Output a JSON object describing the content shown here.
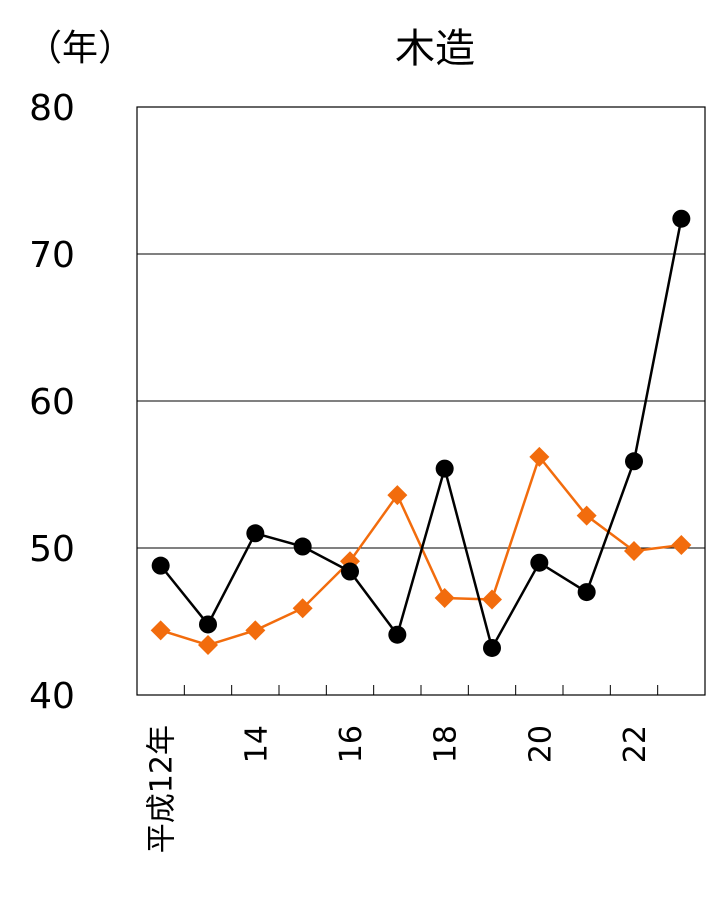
{
  "chart_data": {
    "type": "line",
    "title": "木造",
    "y_label": "（年）",
    "categories": [
      "平成12年",
      null,
      "14",
      null,
      "16",
      null,
      "18",
      null,
      "20",
      null,
      "22",
      null
    ],
    "series": [
      {
        "color": "#000000",
        "marker": "circle",
        "values": [
          48.8,
          44.8,
          51.0,
          50.1,
          48.4,
          44.1,
          55.4,
          43.2,
          49.0,
          47.0,
          55.9,
          72.4
        ]
      },
      {
        "color": "#f26c0d",
        "marker": "diamond",
        "values": [
          44.4,
          43.4,
          44.4,
          45.9,
          49.1,
          53.6,
          46.6,
          46.5,
          56.2,
          52.2,
          49.8,
          50.2
        ]
      }
    ],
    "ylim": [
      40,
      80
    ],
    "yticks": [
      40,
      50,
      60,
      70,
      80
    ],
    "grid": true
  }
}
